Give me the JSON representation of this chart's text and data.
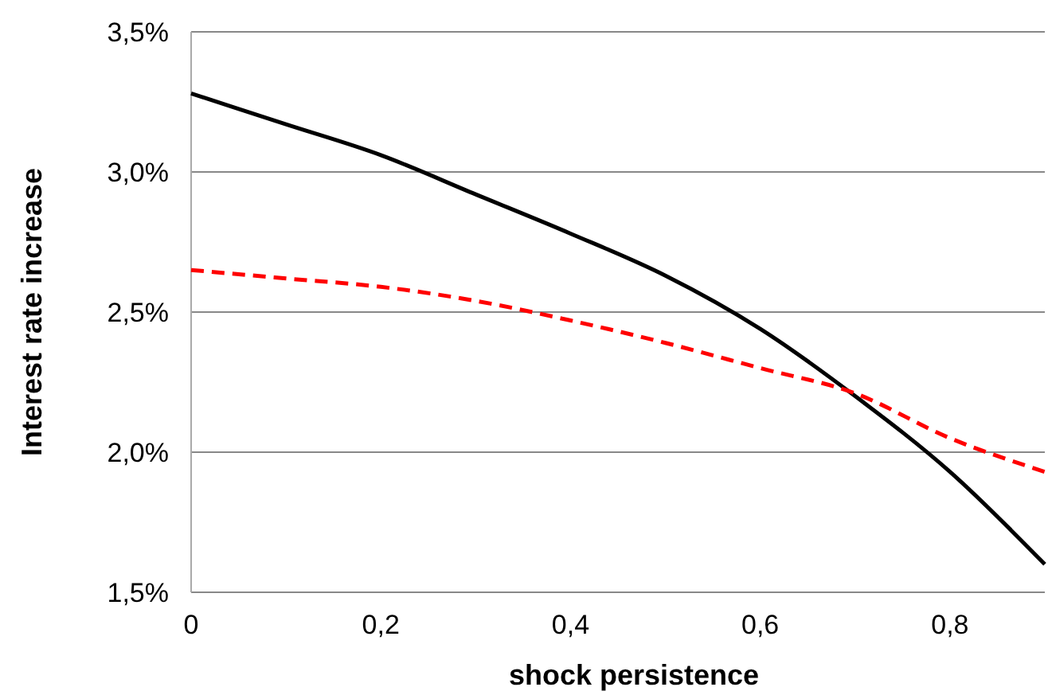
{
  "chart_data": {
    "type": "line",
    "xlabel": "shock persistence",
    "ylabel": "Interest rate increase",
    "x": [
      0,
      0.1,
      0.2,
      0.3,
      0.4,
      0.5,
      0.6,
      0.7,
      0.8,
      0.9
    ],
    "series": [
      {
        "color": "#000000",
        "line_style": "solid",
        "values": [
          3.28,
          3.17,
          3.06,
          2.92,
          2.78,
          2.63,
          2.44,
          2.2,
          1.93,
          1.6
        ]
      },
      {
        "color": "#ff0000",
        "line_style": "dashed",
        "values": [
          2.65,
          2.62,
          2.59,
          2.54,
          2.47,
          2.39,
          2.3,
          2.21,
          2.05,
          1.93
        ]
      }
    ],
    "xlim": [
      0,
      0.9
    ],
    "xticks": [
      0,
      {
        "value": 0.2,
        "label": "0,2"
      },
      {
        "value": 0.4,
        "label": "0,4"
      },
      {
        "value": 0.6,
        "label": "0,6"
      },
      {
        "value": 0.8,
        "label": "0,8"
      }
    ],
    "ylim": [
      1.5,
      3.5
    ],
    "yticks": [
      {
        "value": 1.5,
        "label": "1,5%"
      },
      {
        "value": 2,
        "label": "2,0%"
      },
      {
        "value": 2.5,
        "label": "2,5%"
      },
      {
        "value": 3,
        "label": "3,0%"
      },
      {
        "value": 3.5,
        "label": "3,5%"
      }
    ],
    "grid": "y",
    "marker": "none"
  }
}
